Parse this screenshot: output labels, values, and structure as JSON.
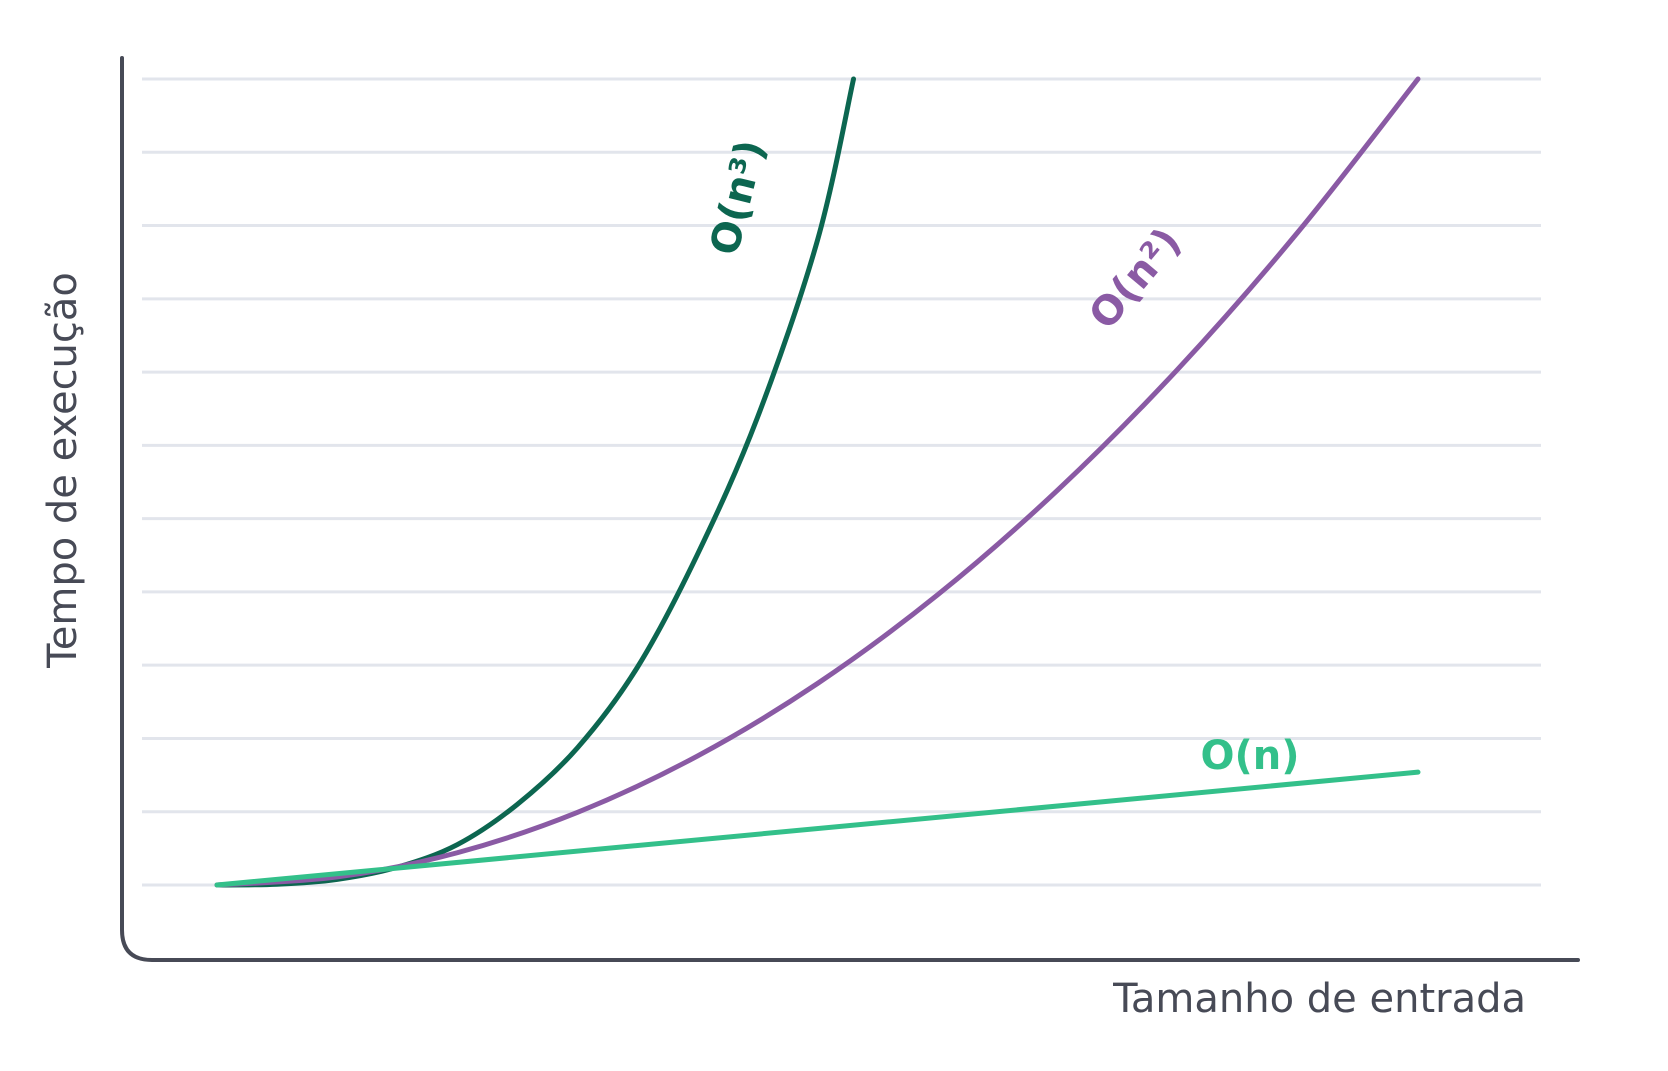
{
  "chart_data": {
    "type": "line",
    "title": "",
    "xlabel": "Tamanho de entrada",
    "ylabel": "Tempo de execução",
    "xlim": [
      0,
      10
    ],
    "ylim": [
      0,
      11
    ],
    "grid": true,
    "legend": "inline",
    "series": [
      {
        "name": "O(n³)",
        "color": "#0c6650",
        "x": [
          0,
          0.5,
          1,
          1.5,
          2,
          2.5,
          3,
          3.5,
          4,
          4.5,
          5,
          5.3
        ],
        "y": [
          0,
          0.01,
          0.07,
          0.22,
          0.5,
          1,
          1.7,
          2.7,
          4.1,
          5.8,
          8,
          10
        ]
      },
      {
        "name": "O(n²)",
        "color": "#8a5aa4",
        "x": [
          0,
          1,
          2,
          3,
          4,
          5,
          6,
          7,
          8,
          9,
          10
        ],
        "y": [
          0,
          0.1,
          0.4,
          0.9,
          1.6,
          2.5,
          3.6,
          4.9,
          6.4,
          8.1,
          10
        ]
      },
      {
        "name": "O(n)",
        "color": "#33c08a",
        "x": [
          0,
          10
        ],
        "y": [
          0,
          1.4
        ]
      }
    ]
  }
}
